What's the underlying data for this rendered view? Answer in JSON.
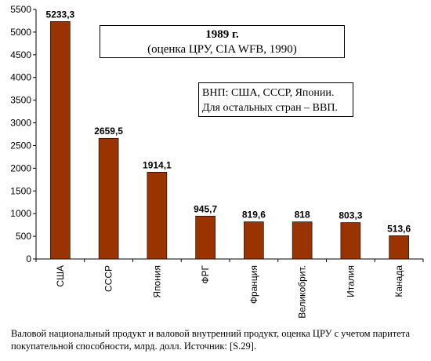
{
  "chart_data": {
    "type": "bar",
    "title": "1989 г.",
    "subtitle": "(оценка ЦРУ, CIA WFB, 1990)",
    "note_lines": [
      "ВНП:  США, СССР, Японии.",
      "Для остальных стран – ВВП."
    ],
    "caption": "Валовой национальный продукт и валовой внутренний продукт, оценка ЦРУ  с учетом паритета покупательной способности, млрд.  долл. Источник:  [S.29].",
    "categories": [
      "США",
      "СССР",
      "Япония",
      "ФРГ",
      "Франция",
      "Великобрит.",
      "Италия",
      "Канада"
    ],
    "values": [
      5233.3,
      2659.5,
      1914.1,
      945.7,
      819.6,
      818,
      803.3,
      513.6
    ],
    "value_labels": [
      "5233,3",
      "2659,5",
      "1914,1",
      "945,7",
      "819,6",
      "818",
      "803,3",
      "513,6"
    ],
    "ylim": [
      0,
      5500
    ],
    "yticks": [
      0,
      500,
      1000,
      1500,
      2000,
      2500,
      3000,
      3500,
      4000,
      4500,
      5000,
      5500
    ],
    "xlabel": "",
    "ylabel": "",
    "grid": false,
    "legend": "none",
    "bar_color": "#993300",
    "bar_edge_color": "#000000"
  }
}
